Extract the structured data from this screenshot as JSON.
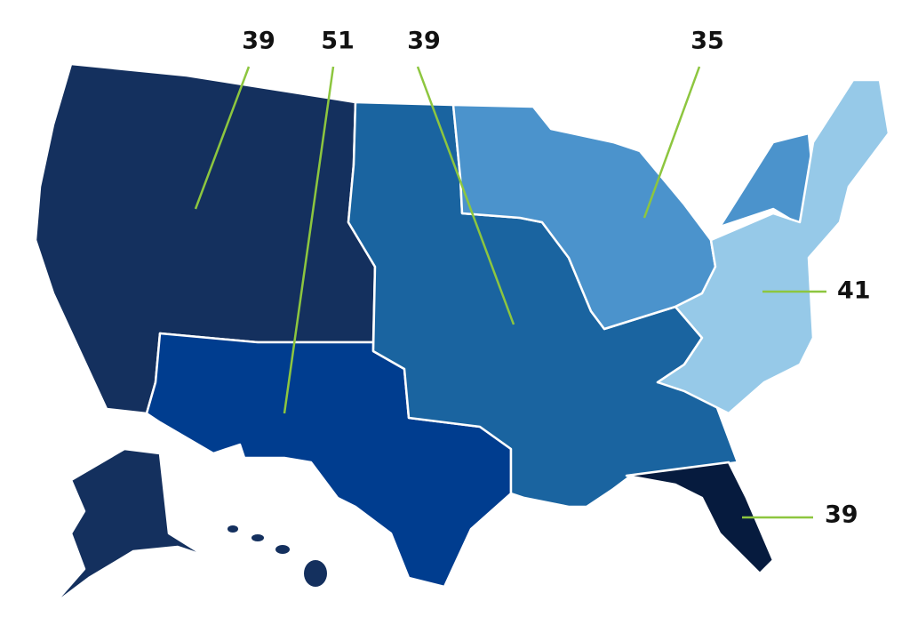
{
  "callouts": [
    {
      "label": 39
    },
    {
      "label": 51
    },
    {
      "label": 39
    },
    {
      "label": 35
    },
    {
      "label": 41
    },
    {
      "label": 39
    }
  ]
}
